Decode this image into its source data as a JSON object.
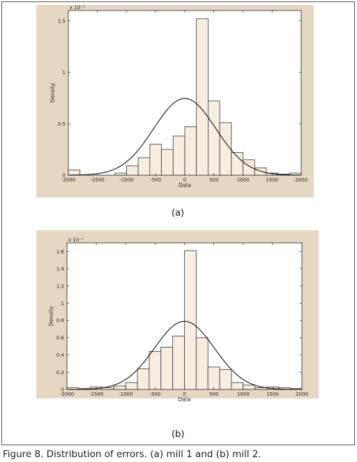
{
  "caption": "Figure 8. Distribution of errors. (a) mill 1 and (b) mill 2.",
  "chart_data": [
    {
      "type": "bar",
      "panel_label": "(a)",
      "xlabel": "Data",
      "ylabel": "Density",
      "y_scale_label": "x 10⁻³",
      "xlim": [
        -2000,
        2000
      ],
      "ylim": [
        0,
        1.6
      ],
      "xticks": [
        "-2000",
        "-1500",
        "-1000",
        "-500",
        "0",
        "500",
        "1000",
        "1500",
        "2000"
      ],
      "yticks": [
        "0",
        "0.5",
        "1",
        "1.5"
      ],
      "yticks_values": [
        0,
        0.5,
        1,
        1.5
      ],
      "bin_width": 200,
      "bin_left_edges": [
        -2000,
        -1800,
        -1600,
        -1400,
        -1200,
        -1000,
        -800,
        -600,
        -400,
        -200,
        0,
        200,
        400,
        600,
        800,
        1000,
        1200,
        1400,
        1600,
        1800
      ],
      "values": [
        0.05,
        0,
        0,
        0,
        0.02,
        0.09,
        0.17,
        0.3,
        0.25,
        0.38,
        0.47,
        1.52,
        0.72,
        0.51,
        0.22,
        0.15,
        0.07,
        0.02,
        0.01,
        0.02
      ],
      "fit_curve": {
        "kind": "normal",
        "mean": 0,
        "std": 535,
        "peak": 0.745
      },
      "bar_fill": "#f7ede0",
      "curve_color": "#111111"
    },
    {
      "type": "bar",
      "panel_label": "(b)",
      "xlabel": "Data",
      "ylabel": "Density",
      "y_scale_label": "x 10⁻³",
      "xlim": [
        -2000,
        2000
      ],
      "ylim": [
        0,
        1.7
      ],
      "xticks": [
        "-2000",
        "-1500",
        "-1000",
        "-500",
        "0",
        "500",
        "1000",
        "1500",
        "2000"
      ],
      "yticks": [
        "0",
        "0.2",
        "0.4",
        "0.6",
        "0.8",
        "1",
        "1.2",
        "1.4",
        "1.6"
      ],
      "yticks_values": [
        0,
        0.2,
        0.4,
        0.6,
        0.8,
        1,
        1.2,
        1.4,
        1.6
      ],
      "bin_width": 200,
      "bin_left_edges": [
        -2000,
        -1800,
        -1600,
        -1400,
        -1200,
        -1000,
        -800,
        -600,
        -400,
        -200,
        0,
        200,
        400,
        600,
        800,
        1000,
        1200,
        1400,
        1600,
        1800
      ],
      "values": [
        0.02,
        0.01,
        0.03,
        0.02,
        0.04,
        0.08,
        0.24,
        0.44,
        0.49,
        0.62,
        1.61,
        0.6,
        0.26,
        0.23,
        0.08,
        0.05,
        0.02,
        0.03,
        0.02,
        0.01
      ],
      "fit_curve": {
        "kind": "normal",
        "mean": 0,
        "std": 510,
        "peak": 0.79
      },
      "bar_fill": "#f7ede0",
      "curve_color": "#111111"
    }
  ]
}
